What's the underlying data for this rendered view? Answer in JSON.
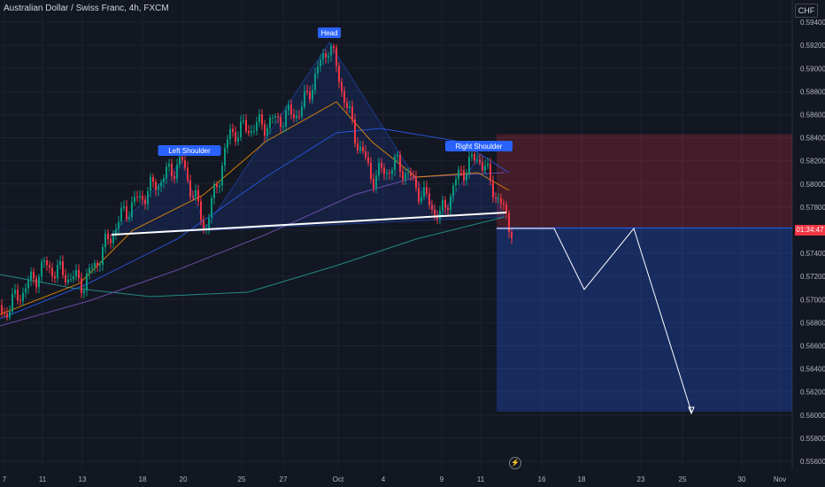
{
  "title": "Australian Dollar / Swiss Franc, 4h, FXCM",
  "currency": "CHF",
  "current_price_label": "01:34:47",
  "bolt_icon": "lightning-icon",
  "colors": {
    "up": "#089981",
    "down": "#f23645",
    "bg": "#131722",
    "grid": "#1e222d",
    "axis_text": "#b2b5be",
    "pattern_fill": "#2962ff",
    "label_bg": "#2962ff",
    "stop_zone": "#f23645",
    "target_zone": "#2962ff"
  },
  "chart_data": {
    "type": "candlestick",
    "title": "Australian Dollar / Swiss Franc, 4h, FXCM",
    "yunit": "CHF",
    "ylim": [
      0.555,
      0.595
    ],
    "y_ticks": [
      "0.55600",
      "0.55800",
      "0.56000",
      "0.56200",
      "0.56400",
      "0.56600",
      "0.56800",
      "0.57000",
      "0.57200",
      "0.57400",
      "0.57600",
      "0.57800",
      "0.58000",
      "0.58200",
      "0.58400",
      "0.58600",
      "0.58800",
      "0.59000",
      "0.59200",
      "0.59400"
    ],
    "x_ticks": [
      "7",
      "11",
      "13",
      "18",
      "20",
      "25",
      "27",
      "Oct",
      "4",
      "9",
      "11",
      "16",
      "18",
      "23",
      "25",
      "30",
      "Nov"
    ],
    "annotations": [
      {
        "label": "Head",
        "price": 0.5925
      },
      {
        "label": "Left Shoulder",
        "price": 0.5822
      },
      {
        "label": "Right Shoulder",
        "price": 0.5825
      }
    ],
    "neckline": [
      0.5755,
      0.5775
    ],
    "stop_zone": [
      0.5762,
      0.5843
    ],
    "target_zone": [
      0.5603,
      0.5762
    ],
    "projection": [
      0.5762,
      0.5708,
      0.5762,
      0.5602
    ],
    "current_price": 0.5762
  }
}
